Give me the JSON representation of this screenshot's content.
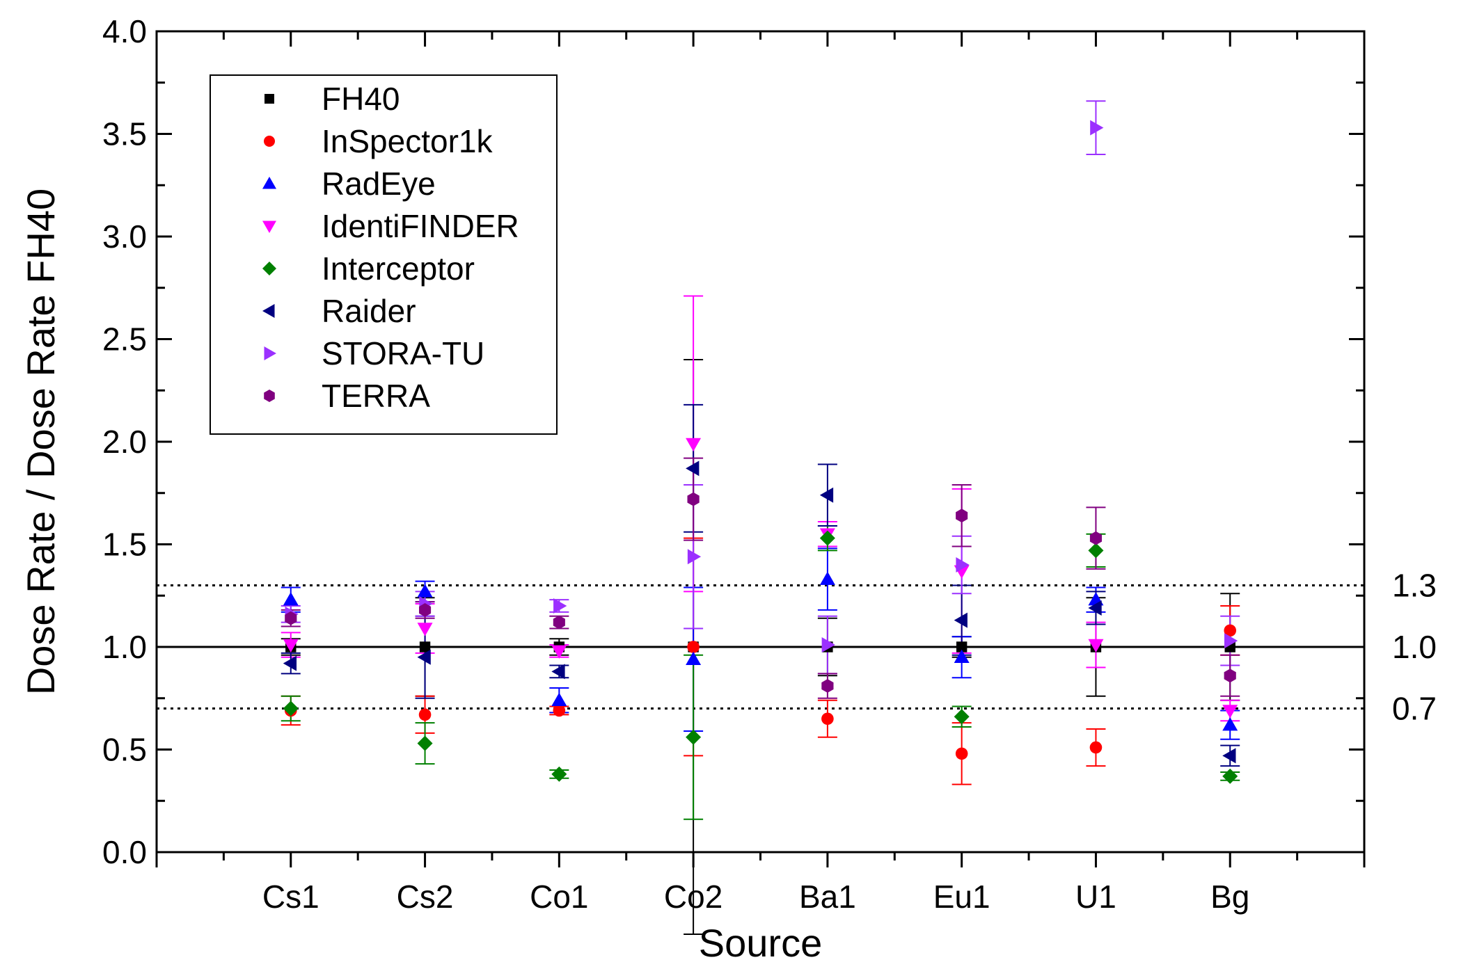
{
  "chart_data": {
    "type": "scatter",
    "xlabel": "Source",
    "ylabel": "Dose Rate / Dose Rate FH40",
    "categories": [
      "Cs1",
      "Cs2",
      "Co1",
      "Co2",
      "Ba1",
      "Eu1",
      "U1",
      "Bg"
    ],
    "ylim": [
      0,
      4.0
    ],
    "yticks": [
      "0.0",
      "0.5",
      "1.0",
      "1.5",
      "2.0",
      "2.5",
      "3.0",
      "3.5",
      "4.0"
    ],
    "grid": false,
    "legend_position": "top-left",
    "error_bars": true,
    "reference_lines": [
      {
        "value": 1.3,
        "label": "1.3",
        "style": "dotted"
      },
      {
        "value": 1.0,
        "label": "1.0",
        "style": "solid"
      },
      {
        "value": 0.7,
        "label": "0.7",
        "style": "dotted"
      }
    ],
    "series": [
      {
        "name": "FH40",
        "color": "#000000",
        "marker": "square",
        "values": [
          1.0,
          1.0,
          1.0,
          1.0,
          1.0,
          1.0,
          1.0,
          1.0
        ],
        "err_low": [
          0.04,
          0.24,
          0.04,
          1.4,
          0.14,
          0.05,
          0.24,
          0.26
        ],
        "err_high": [
          0.04,
          0.24,
          0.04,
          1.4,
          0.14,
          0.05,
          0.24,
          0.26
        ]
      },
      {
        "name": "InSpector1k",
        "color": "#ff0000",
        "marker": "circle",
        "values": [
          0.69,
          0.67,
          0.69,
          1.0,
          0.65,
          0.48,
          0.51,
          1.08
        ],
        "err_low": [
          0.07,
          0.09,
          0.02,
          0.53,
          0.09,
          0.15,
          0.09,
          0.12
        ],
        "err_high": [
          0.07,
          0.09,
          0.02,
          0.53,
          0.09,
          0.15,
          0.09,
          0.12
        ]
      },
      {
        "name": "RadEye",
        "color": "#0000ff",
        "marker": "triangle-up",
        "values": [
          1.23,
          1.27,
          0.74,
          0.94,
          1.33,
          0.95,
          1.23,
          0.62
        ],
        "err_low": [
          0.06,
          0.05,
          0.06,
          0.35,
          0.15,
          0.1,
          0.06,
          0.07
        ],
        "err_high": [
          0.06,
          0.05,
          0.06,
          0.35,
          0.15,
          0.1,
          0.06,
          0.07
        ]
      },
      {
        "name": "IdentiFINDER",
        "color": "#ff00ff",
        "marker": "triangle-down",
        "values": [
          1.01,
          1.09,
          0.98,
          1.99,
          1.55,
          1.37,
          1.01,
          0.69
        ],
        "err_low": [
          0.06,
          0.12,
          0.03,
          0.72,
          0.06,
          0.4,
          0.11,
          0.05
        ],
        "err_high": [
          0.06,
          0.12,
          0.03,
          0.72,
          0.06,
          0.4,
          0.11,
          0.05
        ]
      },
      {
        "name": "Interceptor",
        "color": "#008000",
        "marker": "diamond",
        "values": [
          0.7,
          0.53,
          0.38,
          0.56,
          1.53,
          0.66,
          1.47,
          0.37
        ],
        "err_low": [
          0.06,
          0.1,
          0.02,
          0.4,
          0.06,
          0.05,
          0.08,
          0.02
        ],
        "err_high": [
          0.06,
          0.1,
          0.02,
          0.4,
          0.06,
          0.05,
          0.08,
          0.02
        ]
      },
      {
        "name": "Raider",
        "color": "#000080",
        "marker": "triangle-left",
        "values": [
          0.92,
          0.95,
          0.88,
          1.87,
          1.74,
          1.13,
          1.19,
          0.47
        ],
        "err_low": [
          0.05,
          0.2,
          0.03,
          0.31,
          0.15,
          0.17,
          0.08,
          0.05
        ],
        "err_high": [
          0.05,
          0.2,
          0.03,
          0.31,
          0.15,
          0.17,
          0.08,
          0.05
        ]
      },
      {
        "name": "STORA-TU",
        "color": "#9b30ff",
        "marker": "triangle-right",
        "values": [
          1.16,
          1.21,
          1.2,
          1.44,
          1.01,
          1.4,
          3.53,
          1.03
        ],
        "err_low": [
          0.04,
          0.06,
          0.03,
          0.35,
          0.14,
          0.14,
          0.13,
          0.12
        ],
        "err_high": [
          0.04,
          0.06,
          0.03,
          0.35,
          0.14,
          0.14,
          0.13,
          0.12
        ]
      },
      {
        "name": "TERRA",
        "color": "#800080",
        "marker": "hexagon",
        "values": [
          1.14,
          1.18,
          1.12,
          1.72,
          0.81,
          1.64,
          1.53,
          0.86
        ],
        "err_low": [
          0.04,
          0.04,
          0.03,
          0.2,
          0.06,
          0.15,
          0.15,
          0.1
        ],
        "err_high": [
          0.04,
          0.04,
          0.03,
          0.2,
          0.06,
          0.15,
          0.15,
          0.1
        ]
      }
    ]
  }
}
